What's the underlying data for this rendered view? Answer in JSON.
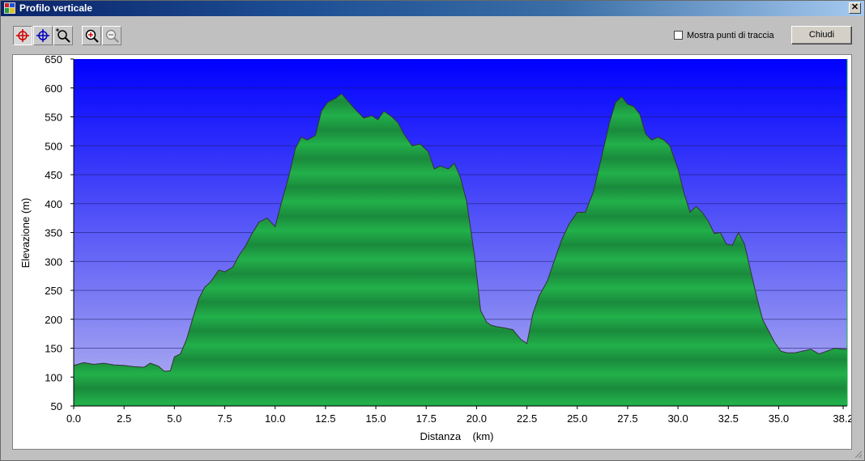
{
  "window": {
    "title": "Profilo verticale",
    "close_label": "✕"
  },
  "toolbar": {
    "buttons": [
      {
        "name": "crosshair-red-icon",
        "pressed": true
      },
      {
        "name": "crosshair-blue-icon",
        "pressed": false
      },
      {
        "name": "zoom-region-icon",
        "pressed": false
      },
      {
        "name": "zoom-in-icon",
        "pressed": false
      },
      {
        "name": "zoom-out-icon",
        "pressed": false
      }
    ],
    "show_points_label": "Mostra punti di traccia",
    "show_points_checked": false,
    "close_button_label": "Chiudi"
  },
  "colors": {
    "sky_top": "#0000ff",
    "sky_bottom": "#b4b4f0",
    "terrain_light": "#22b04a",
    "terrain_dark": "#145f2a"
  },
  "chart_data": {
    "type": "area",
    "xlabel": "Distanza    (km)",
    "ylabel": "Elevazione  (m)",
    "xlim": [
      0,
      38.4
    ],
    "ylim": [
      50,
      650
    ],
    "xticks": [
      "0.0",
      "2.5",
      "5.0",
      "7.5",
      "10.0",
      "12.5",
      "15.0",
      "17.5",
      "20.0",
      "22.5",
      "25.0",
      "27.5",
      "30.0",
      "32.5",
      "35.0",
      "38.2"
    ],
    "yticks": [
      "50",
      "100",
      "150",
      "200",
      "250",
      "300",
      "350",
      "400",
      "450",
      "500",
      "550",
      "600",
      "650"
    ],
    "x": [
      0,
      0.5,
      1,
      1.5,
      2,
      2.5,
      3,
      3.5,
      3.8,
      4.2,
      4.5,
      4.8,
      5.0,
      5.3,
      5.6,
      5.9,
      6.2,
      6.5,
      6.8,
      7.2,
      7.5,
      7.9,
      8.2,
      8.5,
      8.8,
      9.2,
      9.6,
      10.0,
      10.3,
      10.7,
      11.0,
      11.3,
      11.6,
      12.0,
      12.3,
      12.6,
      13.0,
      13.3,
      13.6,
      14.0,
      14.4,
      14.8,
      15.1,
      15.4,
      15.8,
      16.1,
      16.4,
      16.8,
      17.2,
      17.6,
      17.9,
      18.2,
      18.6,
      18.9,
      19.2,
      19.5,
      19.9,
      20.2,
      20.5,
      20.7,
      21.0,
      21.4,
      21.8,
      22.2,
      22.5,
      22.8,
      23.1,
      23.5,
      23.8,
      24.2,
      24.6,
      25.0,
      25.4,
      25.8,
      26.2,
      26.6,
      26.9,
      27.2,
      27.5,
      27.8,
      28.1,
      28.4,
      28.7,
      29.0,
      29.3,
      29.6,
      30.0,
      30.3,
      30.6,
      30.9,
      31.2,
      31.5,
      31.8,
      32.1,
      32.4,
      32.7,
      33.0,
      33.3,
      33.6,
      33.9,
      34.2,
      34.5,
      34.8,
      35.1,
      35.4,
      35.8,
      36.2,
      36.6,
      37.0,
      37.4,
      37.8,
      38.2,
      38.4
    ],
    "y": [
      120,
      125,
      122,
      124,
      121,
      120,
      118,
      117,
      124,
      119,
      110,
      111,
      135,
      140,
      165,
      200,
      235,
      255,
      265,
      285,
      282,
      290,
      310,
      325,
      345,
      368,
      375,
      360,
      400,
      450,
      495,
      515,
      510,
      518,
      560,
      575,
      582,
      590,
      578,
      562,
      548,
      552,
      545,
      560,
      550,
      540,
      520,
      500,
      503,
      490,
      460,
      465,
      460,
      470,
      445,
      405,
      310,
      215,
      195,
      190,
      187,
      185,
      182,
      165,
      158,
      210,
      240,
      265,
      295,
      335,
      365,
      385,
      385,
      420,
      480,
      540,
      575,
      585,
      572,
      568,
      555,
      520,
      510,
      515,
      510,
      500,
      460,
      418,
      385,
      395,
      385,
      370,
      348,
      350,
      330,
      328,
      350,
      330,
      285,
      240,
      200,
      180,
      160,
      145,
      142,
      142,
      145,
      148,
      140,
      145,
      150,
      148,
      148
    ]
  }
}
